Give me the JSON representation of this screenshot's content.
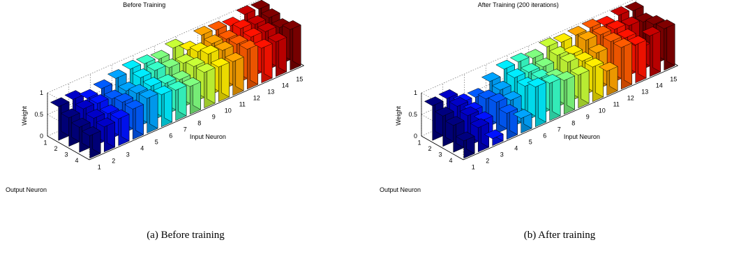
{
  "chart_data": [
    {
      "type": "bar3d",
      "title": "Before Training",
      "caption": "(a) Before training",
      "xlabel": "Input Neuron",
      "ylabel": "Output Neuron",
      "zlabel": "Weight",
      "x_ticks": [
        "1",
        "2",
        "3",
        "4",
        "5",
        "6",
        "7",
        "8",
        "9",
        "10",
        "11",
        "12",
        "13",
        "14",
        "15"
      ],
      "y_ticks": [
        "1",
        "2",
        "3",
        "4"
      ],
      "z_ticks": [
        "0",
        "0.5",
        "1"
      ],
      "zlim": [
        0,
        1
      ],
      "colormap": "jet",
      "values": [
        [
          0.78,
          0.8,
          0.68,
          0.76,
          0.85,
          0.92,
          0.9,
          0.86,
          0.97,
          0.78,
          0.98,
          0.95,
          0.9,
          1.02,
          1.0
        ],
        [
          0.66,
          0.72,
          0.7,
          0.66,
          0.7,
          0.86,
          0.88,
          0.8,
          0.76,
          0.88,
          0.92,
          0.88,
          0.98,
          0.93,
          0.94
        ],
        [
          0.58,
          0.64,
          0.6,
          0.72,
          0.78,
          0.8,
          0.72,
          0.66,
          0.82,
          0.96,
          0.9,
          0.9,
          0.92,
          0.9,
          0.85
        ],
        [
          0.52,
          0.58,
          0.62,
          0.7,
          0.8,
          0.74,
          0.7,
          0.64,
          0.82,
          0.8,
          0.78,
          0.92,
          0.8,
          0.8,
          0.94
        ]
      ]
    },
    {
      "type": "bar3d",
      "title": "After Training (200 iterations)",
      "caption": "(b) After training",
      "xlabel": "Input Neuron",
      "ylabel": "Output Neuron",
      "zlabel": "Weight",
      "x_ticks": [
        "1",
        "2",
        "3",
        "4",
        "5",
        "6",
        "7",
        "8",
        "9",
        "10",
        "11",
        "12",
        "13",
        "14",
        "15"
      ],
      "y_ticks": [
        "1",
        "2",
        "3",
        "4"
      ],
      "z_ticks": [
        "0",
        "0.5",
        "1"
      ],
      "zlim": [
        0,
        1
      ],
      "colormap": "jet",
      "values": [
        [
          0.8,
          0.82,
          0.58,
          0.56,
          0.78,
          0.92,
          0.94,
          0.88,
          1.0,
          0.96,
          0.98,
          1.0,
          0.92,
          1.0,
          0.96
        ],
        [
          0.7,
          0.78,
          0.52,
          0.66,
          0.72,
          0.86,
          0.84,
          0.82,
          0.94,
          0.82,
          1.0,
          0.98,
          0.96,
          0.9,
          0.84
        ],
        [
          0.62,
          0.7,
          0.44,
          0.72,
          0.62,
          0.8,
          0.84,
          0.7,
          0.92,
          0.8,
          0.84,
          0.96,
          0.9,
          0.52,
          0.92
        ],
        [
          0.4,
          0.56,
          0.16,
          0.6,
          0.34,
          0.92,
          0.86,
          0.78,
          0.76,
          0.8,
          0.56,
          0.96,
          0.88,
          0.94,
          0.96
        ]
      ]
    }
  ]
}
